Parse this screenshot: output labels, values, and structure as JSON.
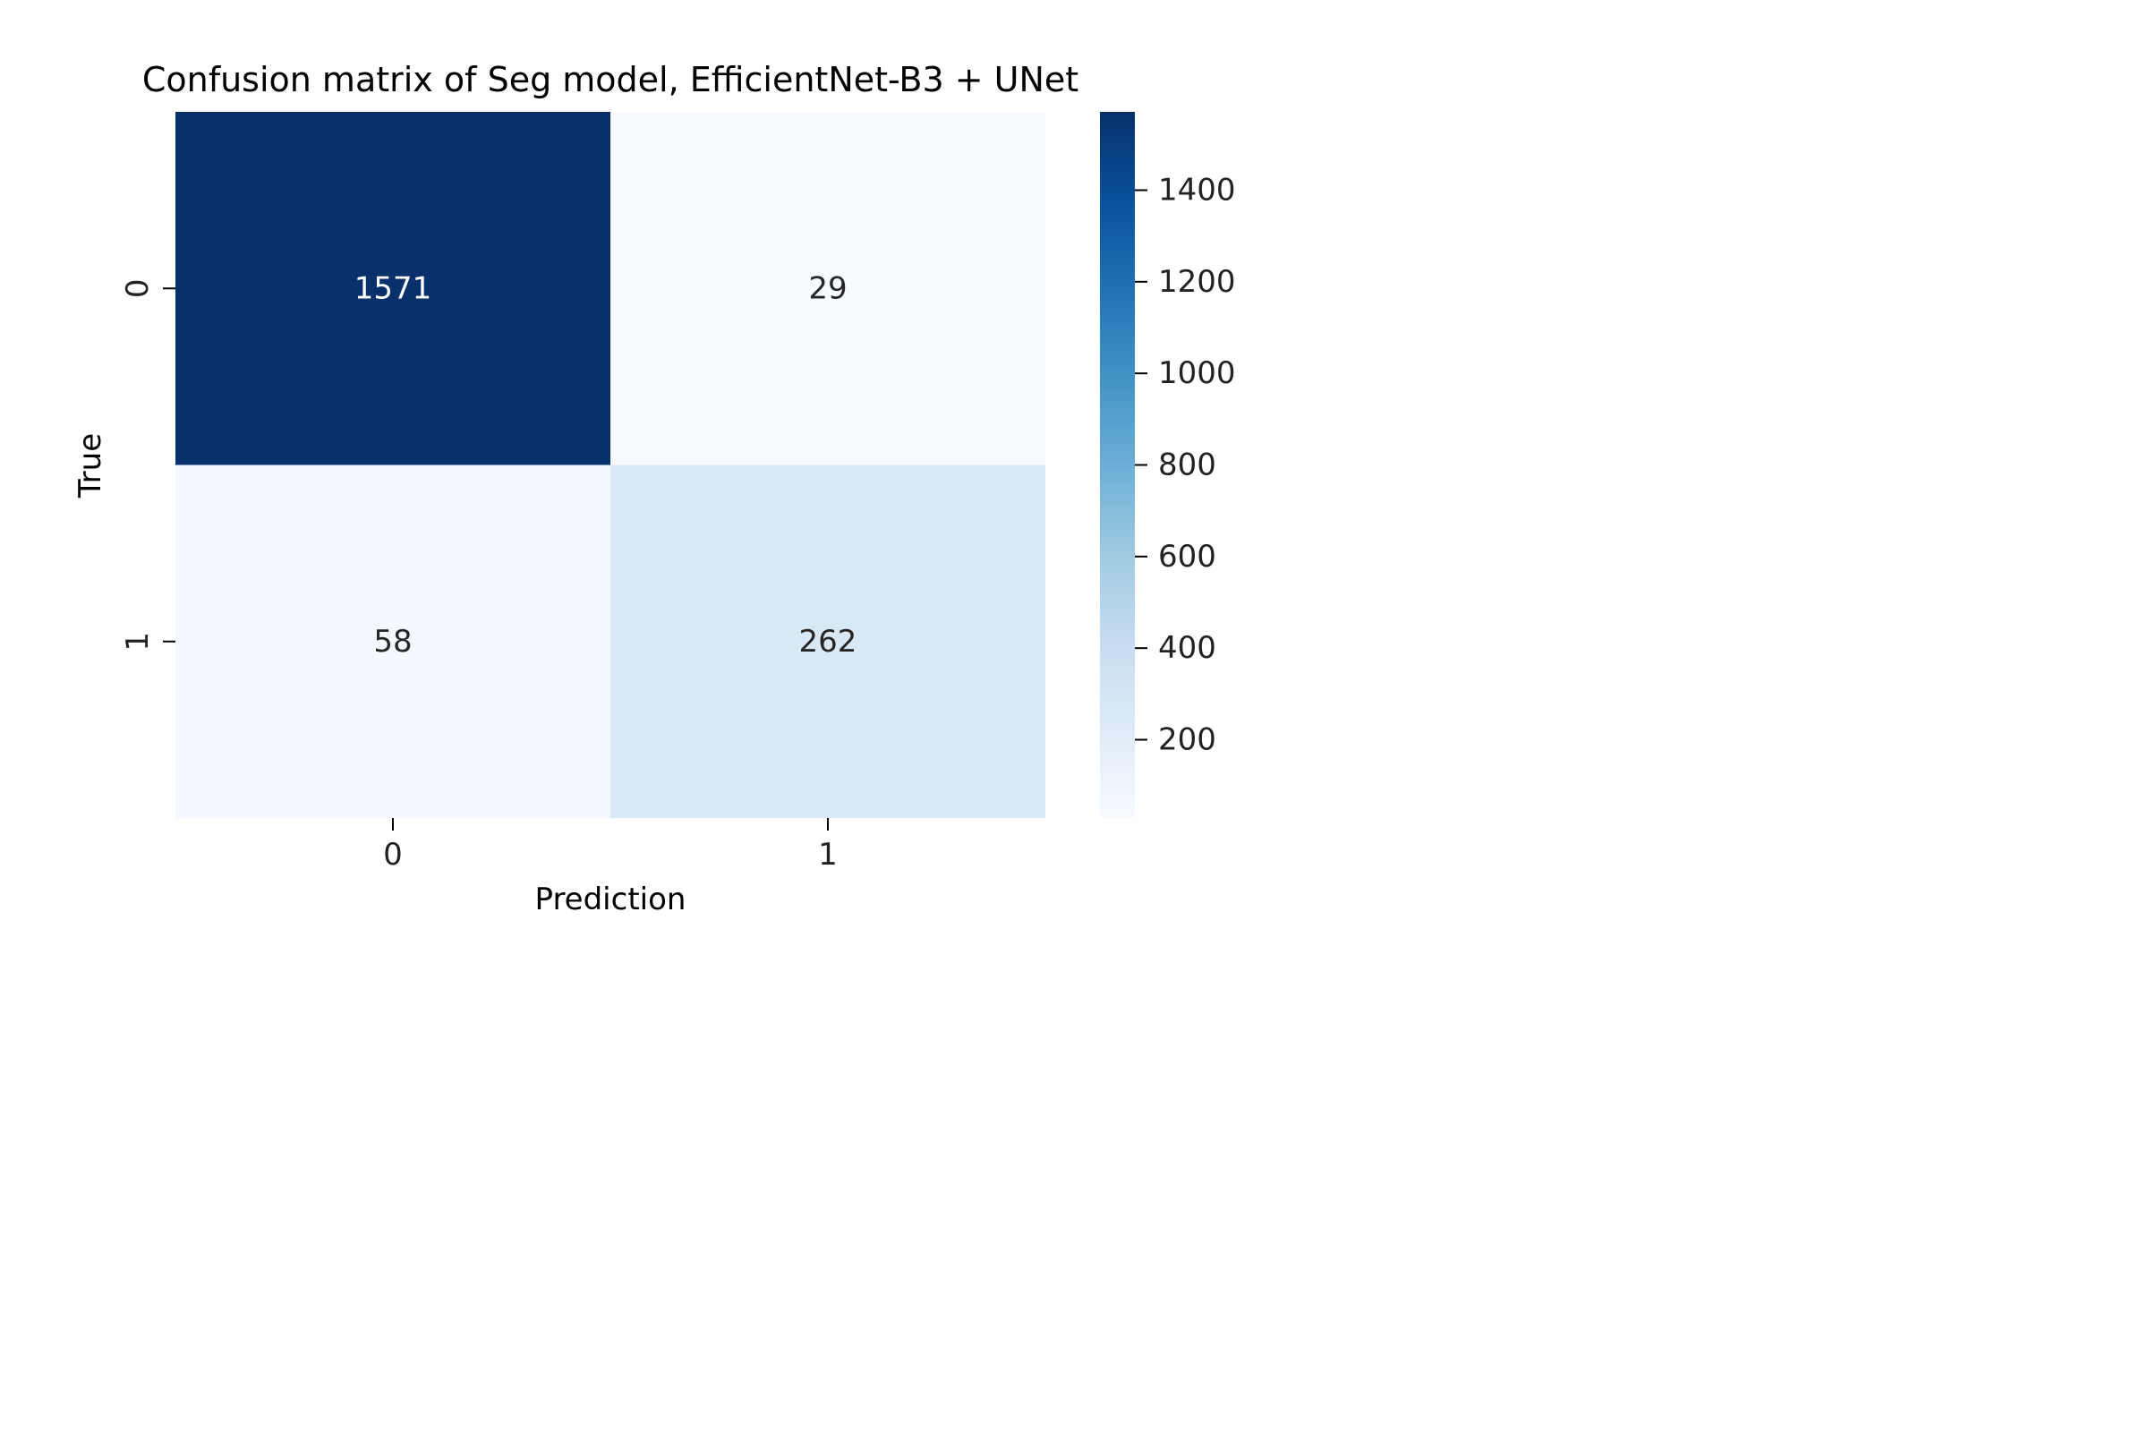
{
  "chart_data": {
    "type": "heatmap",
    "title": "Confusion matrix of Seg model, EfficientNet-B3 + UNet",
    "xlabel": "Prediction",
    "ylabel": "True",
    "x_categories": [
      "0",
      "1"
    ],
    "y_categories": [
      "0",
      "1"
    ],
    "values": [
      [
        1571,
        29
      ],
      [
        58,
        262
      ]
    ],
    "colormap": "Blues",
    "colorbar": {
      "range": [
        29,
        1571
      ],
      "ticks": [
        200,
        400,
        600,
        800,
        1000,
        1200,
        1400
      ]
    },
    "colors": {
      "low": "#f7fbff",
      "high": "#08306b",
      "text_dark": "#262626",
      "text_light": "#ffffff"
    }
  }
}
